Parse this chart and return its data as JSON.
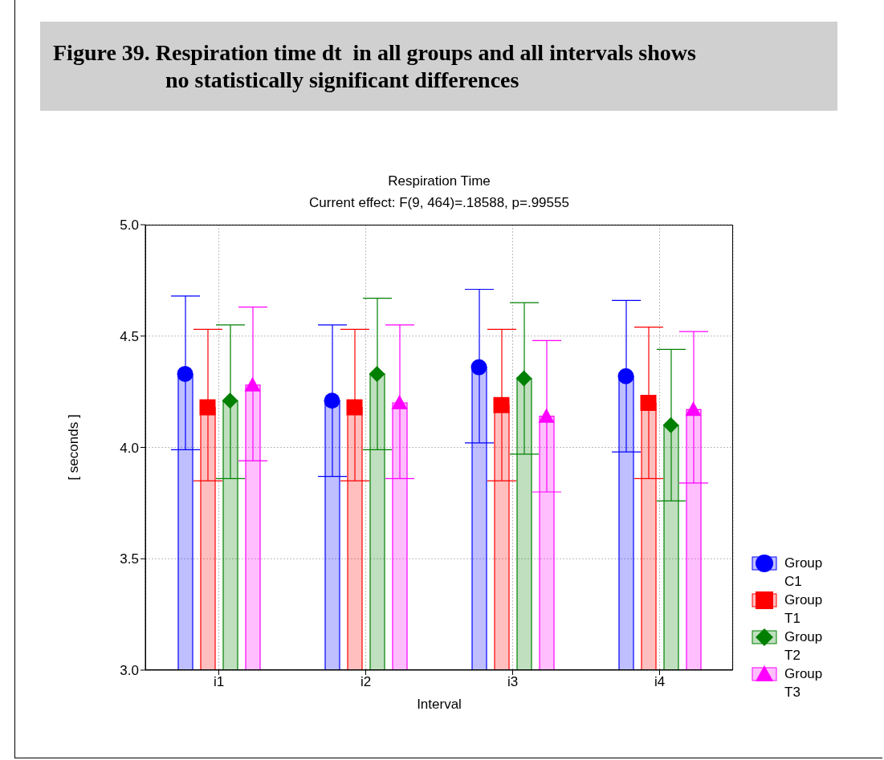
{
  "chart_data": {
    "type": "bar",
    "title": "Figure 39. Respiration time dt  in all groups and all intervals shows\nno statistically significant differences",
    "subtitle": "Respiration Time",
    "annotations": [
      "Current effect: F(9, 464)=.18588, p=.99555"
    ],
    "xlabel": "Interval",
    "ylabel": "[ seconds ]",
    "categories": [
      "i1",
      "i2",
      "i3",
      "i4"
    ],
    "series": [
      {
        "name": "Group C1",
        "color": "#0000ff",
        "marker": "circle",
        "values": [
          4.33,
          4.21,
          4.36,
          4.32
        ],
        "errors": [
          [
            3.99,
            4.68
          ],
          [
            3.87,
            4.55
          ],
          [
            4.02,
            4.71
          ],
          [
            3.98,
            4.66
          ]
        ]
      },
      {
        "name": "Group T1",
        "color": "#ff0000",
        "marker": "square",
        "values": [
          4.18,
          4.18,
          4.19,
          4.2
        ],
        "errors": [
          [
            3.85,
            4.53
          ],
          [
            3.85,
            4.53
          ],
          [
            3.85,
            4.53
          ],
          [
            3.86,
            4.54
          ]
        ]
      },
      {
        "name": "Group T2",
        "color": "#008000",
        "marker": "diamond",
        "values": [
          4.21,
          4.33,
          4.31,
          4.1
        ],
        "errors": [
          [
            3.86,
            4.55
          ],
          [
            3.99,
            4.67
          ],
          [
            3.97,
            4.65
          ],
          [
            3.76,
            4.44
          ]
        ]
      },
      {
        "name": "Group T3",
        "color": "#ff00ff",
        "marker": "triangle",
        "values": [
          4.28,
          4.2,
          4.14,
          4.17
        ],
        "errors": [
          [
            3.94,
            4.63
          ],
          [
            3.86,
            4.55
          ],
          [
            3.8,
            4.48
          ],
          [
            3.84,
            4.52
          ]
        ]
      },
      {
        "type": "scatter",
        "color": "#0000ff",
        "marker": "circle",
        "x": [
          "i1",
          "i2",
          "i3",
          "i4"
        ],
        "values": [
          4.33,
          4.21,
          4.36,
          4.32
        ]
      },
      {
        "type": "scatter",
        "color": "#ff0000",
        "marker": "square",
        "x": [
          "i1",
          "i2",
          "i3",
          "i4"
        ],
        "values": [
          4.18,
          4.18,
          4.19,
          4.2
        ]
      },
      {
        "type": "scatter",
        "color": "#008000",
        "marker": "diamond",
        "x": [
          "i1",
          "i2",
          "i3",
          "i4"
        ],
        "values": [
          4.21,
          4.33,
          4.31,
          4.1
        ]
      },
      {
        "type": "scatter",
        "color": "#ff00ff",
        "marker": "triangle",
        "x": [
          "i1",
          "i2",
          "i3",
          "i4"
        ],
        "values": [
          4.28,
          4.2,
          4.14,
          4.17
        ]
      }
    ],
    "ylim": [
      3,
      5
    ],
    "yticks": [
      {
        "value": 3,
        "label": "3.0"
      },
      3.5,
      {
        "value": 4,
        "label": "4.0"
      },
      4.5,
      {
        "value": 5,
        "label": "5.0"
      }
    ],
    "grid": true,
    "legend": "right"
  }
}
